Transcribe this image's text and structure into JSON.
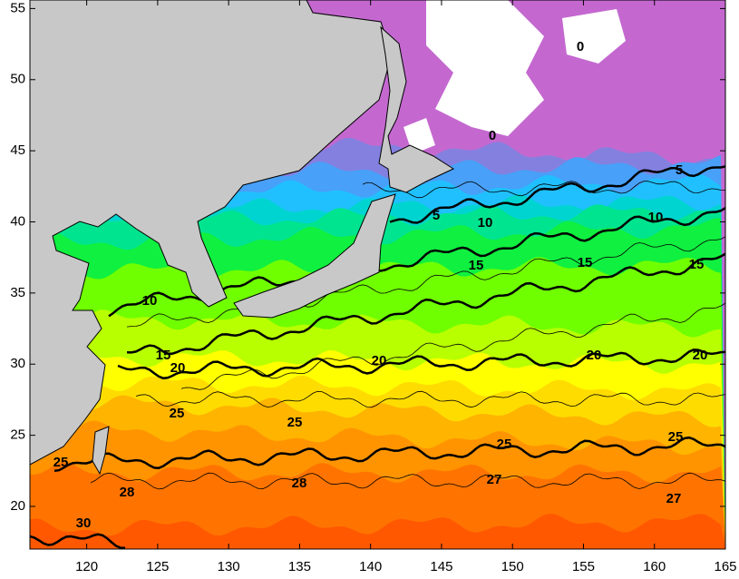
{
  "map": {
    "xlim": [
      116,
      165
    ],
    "ylim": [
      17,
      55.6
    ],
    "xticks": [
      120,
      125,
      130,
      135,
      140,
      145,
      150,
      155,
      160,
      165
    ],
    "yticks": [
      20,
      25,
      30,
      35,
      40,
      45,
      50,
      55
    ],
    "contour_labels": [
      0,
      0,
      5,
      5,
      10,
      10,
      10,
      15,
      15,
      15,
      15,
      20,
      20,
      20,
      20,
      25,
      25,
      25,
      25,
      25,
      28,
      28,
      27,
      27,
      30
    ]
  }
}
